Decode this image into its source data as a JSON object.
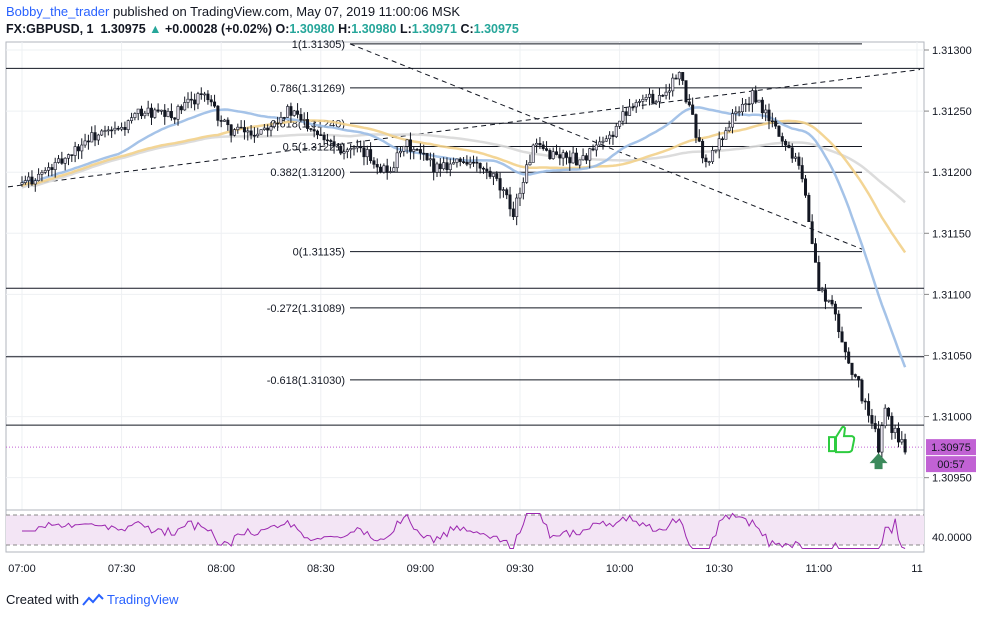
{
  "header": {
    "author": "Bobby_the_trader",
    "published_text": " published on TradingView.com, May 07, 2019 11:00:06 MSK",
    "symbol": "FX:GBPUSD, 1",
    "last": "1.30975",
    "change_arrow": "▲",
    "change": "+0.00028 (+0.02%)",
    "o_label": "O:",
    "o_value": "1.30980",
    "h_label": "H:",
    "h_value": "1.30980",
    "l_label": "L:",
    "l_value": "1.30971",
    "c_label": "C:",
    "c_value": "1.30975"
  },
  "footer": {
    "created_with": "Created with",
    "brand": "TradingView",
    "logo_icon": "tradingview-logo-icon"
  },
  "colors": {
    "up": "#26a69a",
    "candle_body": "#131722",
    "candle_fill": "#e8e3ef",
    "wick": "#131722",
    "ma_fast": "#9bbce6",
    "ma_mid": "#f2d08a",
    "ma_slow": "#d8d8d8",
    "rsi_line": "#9c27b0",
    "rsi_band": "#f3e5f5",
    "price_label_bg": "#c162d4",
    "hline": "#131722",
    "grid": "#eef0f3",
    "thumbs": "#2ecc40",
    "arrow": "#3c8a5c"
  },
  "chart_data": {
    "type": "candlestick",
    "symbol": "FX:GBPUSD",
    "timeframe": "1",
    "ylim": [
      1.30935,
      1.31318
    ],
    "y_ticks": [
      "1.30950",
      "1.31000",
      "1.31050",
      "1.31100",
      "1.31150",
      "1.31200",
      "1.31250",
      "1.31300"
    ],
    "x_ticks": [
      "07:00",
      "07:30",
      "08:00",
      "08:30",
      "09:00",
      "09:30",
      "10:00",
      "10:30",
      "11:00",
      "11"
    ],
    "x_range_minutes": [
      0,
      272
    ],
    "last_price_label": "1.30975",
    "countdown_label": "00:57",
    "fibonacci": [
      {
        "label": "1(1.31305)",
        "price": 1.31305
      },
      {
        "label": "0.786(1.31269)",
        "price": 1.31269
      },
      {
        "label": "0.618(1.31240)",
        "price": 1.3124
      },
      {
        "label": "0.5(1.31221)",
        "price": 1.31221
      },
      {
        "label": "0.382(1.31200)",
        "price": 1.312
      },
      {
        "label": "0(1.31135)",
        "price": 1.31135
      },
      {
        "label": "-0.272(1.31089)",
        "price": 1.31089
      },
      {
        "label": "-0.618(1.31030)",
        "price": 1.3103
      }
    ],
    "horizontal_levels": [
      1.31285,
      1.31105,
      1.31049,
      1.30993
    ],
    "rsi": {
      "level_label": "40.0000",
      "upper": 70,
      "lower": 30,
      "ylim": [
        20,
        80
      ]
    }
  }
}
